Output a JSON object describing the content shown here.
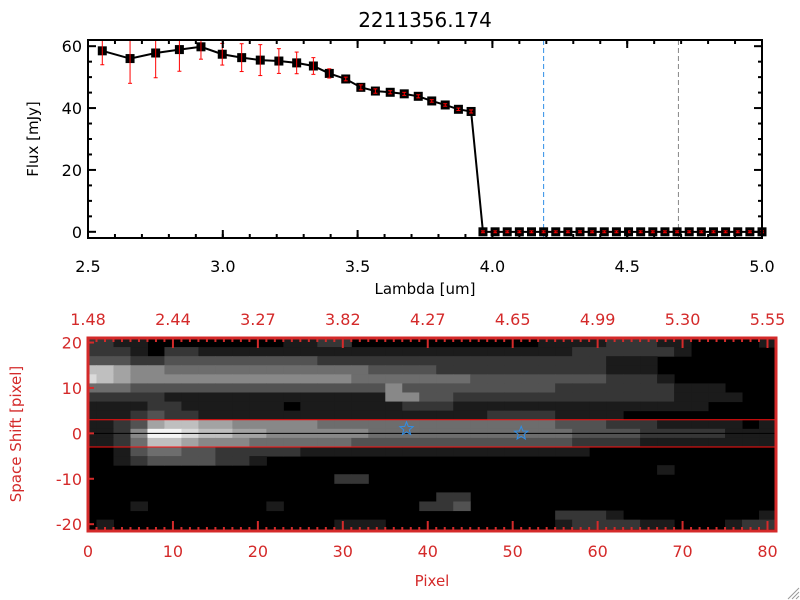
{
  "colors": {
    "axis_bottom": "#d42a2a",
    "errorbar": "#ff0000",
    "blue_line": "#2f8ee8",
    "gray_line": "#888888",
    "star": "#2f8ee8"
  },
  "chart_data": [
    {
      "type": "line",
      "title": "2211356.174",
      "xlabel": "Lambda [um]",
      "ylabel": "Flux [mJy]",
      "xlim": [
        2.5,
        5.0
      ],
      "ylim": [
        -2,
        62
      ],
      "xticks": [
        "2.5",
        "3.0",
        "3.5",
        "4.0",
        "4.5",
        "5.0"
      ],
      "yticks": [
        "0",
        "20",
        "40",
        "60"
      ],
      "x": [
        2.553,
        2.656,
        2.751,
        2.839,
        2.919,
        2.998,
        3.07,
        3.139,
        3.208,
        3.274,
        3.336,
        3.395,
        3.456,
        3.512,
        3.566,
        3.621,
        3.673,
        3.725,
        3.775,
        3.825,
        3.874,
        3.921,
        3.965,
        4.01,
        4.055,
        4.1,
        4.145,
        4.19,
        4.235,
        4.28,
        4.325,
        4.37,
        4.415,
        4.46,
        4.505,
        4.55,
        4.595,
        4.64,
        4.685,
        4.73,
        4.775,
        4.82,
        4.865,
        4.91,
        4.955,
        5.0
      ],
      "y": [
        58.5,
        56,
        57.8,
        58.9,
        59.8,
        57.4,
        56.3,
        55.5,
        55.2,
        54.6,
        53.6,
        51.2,
        49.4,
        46.7,
        45.5,
        45.1,
        44.6,
        43.8,
        42.3,
        41,
        39.6,
        38.9,
        0,
        0,
        0,
        0,
        0,
        0,
        0,
        0,
        0,
        0,
        0,
        0,
        0,
        0,
        0,
        0,
        0,
        0,
        0,
        0,
        0,
        0,
        0,
        0
      ],
      "yerr": [
        4.5,
        8,
        8,
        7,
        4,
        3.5,
        4.5,
        5,
        4,
        3.5,
        2.7,
        1.5,
        0.6,
        0.8,
        0.7,
        0.5,
        0.5,
        0.5,
        0.4,
        0.4,
        0.4,
        0.5,
        0.3,
        0.3,
        0.3,
        0.3,
        0.3,
        0.3,
        0.3,
        0.3,
        0.3,
        0.3,
        0.3,
        0.3,
        0.3,
        0.3,
        0.3,
        0.3,
        0.3,
        0.3,
        0.3,
        0.3,
        0.3,
        0.3,
        0.3,
        0.3
      ],
      "vlines": [
        {
          "x": 4.19,
          "style": "dashed",
          "color": "blue"
        },
        {
          "x": 4.69,
          "style": "dashed",
          "color": "gray"
        }
      ],
      "hline_from_4": 0
    },
    {
      "type": "heatmap",
      "xlabel": "Pixel",
      "ylabel": "Space Shift [pixel]",
      "xlim": [
        0,
        81
      ],
      "ylim": [
        -21.5,
        21
      ],
      "xticks": [
        "0",
        "10",
        "20",
        "30",
        "40",
        "50",
        "60",
        "70",
        "80"
      ],
      "yticks": [
        "-20",
        "-10",
        "0",
        "10",
        "20"
      ],
      "top_xticks": [
        "1.48",
        "2.44",
        "3.27",
        "3.82",
        "4.27",
        "4.65",
        "4.99",
        "5.30",
        "5.55"
      ],
      "row_y_start": 20,
      "row_y_step": -2,
      "col_x_start": 0,
      "col_x_step": 2,
      "rows": [
        "22110000000011220000000000011112221100001",
        "22210221111111111111111111111222222100000",
        "33322333333333222222222222222221110000000",
        "77655444444444444333322222222221110000000",
        "87655555555555554444444333333332221000000",
        "44433333333333333353333333332222222111000",
        "22222111111111111155332222222222222111100",
        "11112211111101111112221111111111111110000",
        "11123221111111111111111122221111000000000",
        "11236776655555444444444444443332221111101",
        "11259987766555555444444444444333322222111",
        "11247765554444443333333333333222211111111",
        "00134433222221111111111111111100000000000",
        "00123333221000000000000000000000000000000",
        "00000000000000000000000000000000001000000",
        "00000000000000022000000000000000000000000",
        "00000000000000000000000000000000000000000",
        "00000000000000000000022000000000000000000",
        "00010000000100000000223000000000000000000",
        "00000000000000000000000000002221000000001",
        "01000000000000011100000000001222211000122"
      ],
      "hlines": [
        {
          "y": 3,
          "color": "red"
        },
        {
          "y": 0,
          "color": "black"
        },
        {
          "y": -3,
          "color": "red"
        }
      ],
      "stars": [
        {
          "x": 37.5,
          "y": 1
        },
        {
          "x": 51,
          "y": 0
        }
      ]
    }
  ]
}
